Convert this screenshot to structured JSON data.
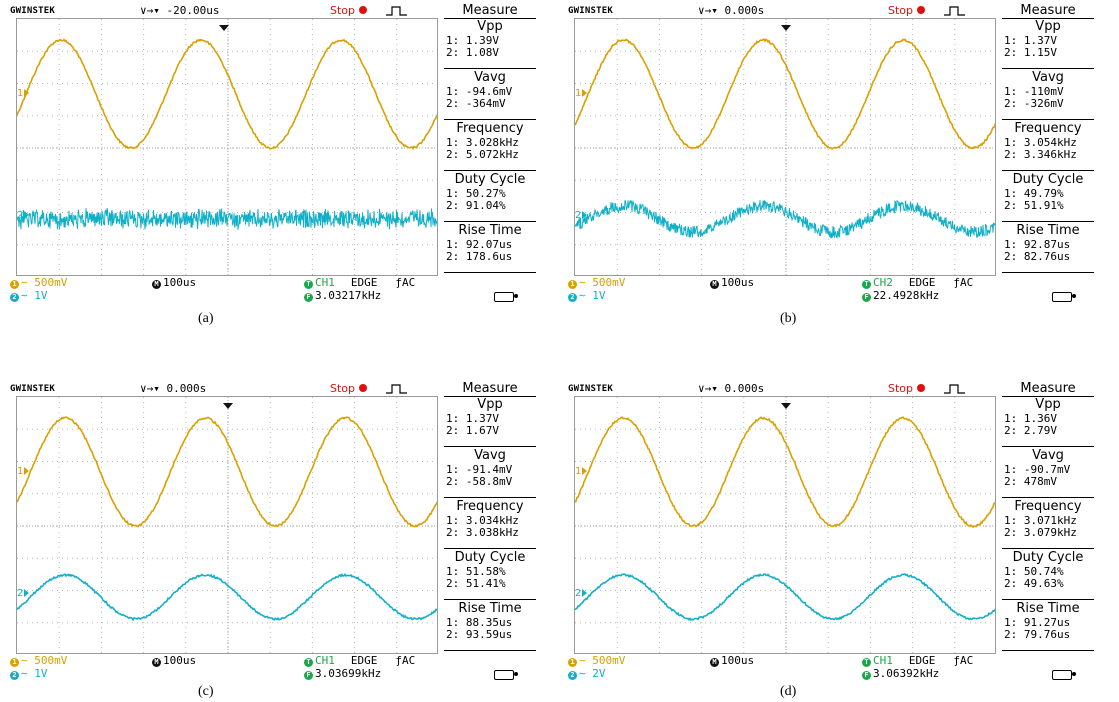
{
  "scopes": [
    {
      "brand": "GWINSTEK",
      "time_pos": "∨→▾ -20.00us",
      "status": "Stop",
      "measure_title": "Measure",
      "measures": [
        {
          "name": "Vpp",
          "v1": "1: 1.39V",
          "v2": "2: 1.08V"
        },
        {
          "name": "Vavg",
          "v1": "1: -94.6mV",
          "v2": "2: -364mV"
        },
        {
          "name": "Frequency",
          "v1": "1: 3.028kHz",
          "v2": "2: 5.072kHz"
        },
        {
          "name": "Duty Cycle",
          "v1": "1: 50.27%",
          "v2": "2: 91.04%"
        },
        {
          "name": "Rise Time",
          "v1": "1: 92.07us",
          "v2": "2: 178.6us"
        }
      ],
      "ch1_scale": "∼ 500mV",
      "ch2_scale": "∼ 1V",
      "timebase": "100us",
      "trig_src": "CH1",
      "trig_type": "EDGE",
      "coupling": "ƒAC",
      "trig_freq": "3.03217kHz",
      "ch1_label": "1",
      "ch2_label": "2",
      "caption": "(a)",
      "ch2_mode": "noise"
    },
    {
      "brand": "GWINSTEK",
      "time_pos": "∨→▾ 0.000s",
      "status": "Stop",
      "measure_title": "Measure",
      "measures": [
        {
          "name": "Vpp",
          "v1": "1: 1.37V",
          "v2": "2: 1.15V"
        },
        {
          "name": "Vavg",
          "v1": "1: -110mV",
          "v2": "2: -326mV"
        },
        {
          "name": "Frequency",
          "v1": "1: 3.054kHz",
          "v2": "2: 3.346kHz"
        },
        {
          "name": "Duty Cycle",
          "v1": "1: 49.79%",
          "v2": "2: 51.91%"
        },
        {
          "name": "Rise Time",
          "v1": "1: 92.87us",
          "v2": "2: 82.76us"
        }
      ],
      "ch1_scale": "∼ 500mV",
      "ch2_scale": "∼ 1V",
      "timebase": "100us",
      "trig_src": "CH2",
      "trig_type": "EDGE",
      "coupling": "ƒAC",
      "trig_freq": "22.4928kHz",
      "ch1_label": "1",
      "ch2_label": "2",
      "caption": "(b)",
      "ch2_mode": "noisy-sine"
    },
    {
      "brand": "GWINSTEK",
      "time_pos": "∨→▾ 0.000s",
      "status": "Stop",
      "measure_title": "Measure",
      "measures": [
        {
          "name": "Vpp",
          "v1": "1: 1.37V",
          "v2": "2: 1.67V"
        },
        {
          "name": "Vavg",
          "v1": "1: -91.4mV",
          "v2": "2: -58.8mV"
        },
        {
          "name": "Frequency",
          "v1": "1: 3.034kHz",
          "v2": "2: 3.038kHz"
        },
        {
          "name": "Duty Cycle",
          "v1": "1: 51.58%",
          "v2": "2: 51.41%"
        },
        {
          "name": "Rise Time",
          "v1": "1: 88.35us",
          "v2": "2: 93.59us"
        }
      ],
      "ch1_scale": "∼ 500mV",
      "ch2_scale": "∼ 1V",
      "timebase": "100us",
      "trig_src": "CH1",
      "trig_type": "EDGE",
      "coupling": "ƒAC",
      "trig_freq": "3.03699kHz",
      "ch1_label": "1",
      "ch2_label": "2",
      "caption": "(c)",
      "ch2_mode": "sine"
    },
    {
      "brand": "GWINSTEK",
      "time_pos": "∨→▾ 0.000s",
      "status": "Stop",
      "measure_title": "Measure",
      "measures": [
        {
          "name": "Vpp",
          "v1": "1: 1.36V",
          "v2": "2: 2.79V"
        },
        {
          "name": "Vavg",
          "v1": "1: -90.7mV",
          "v2": "2: 478mV"
        },
        {
          "name": "Frequency",
          "v1": "1: 3.071kHz",
          "v2": "2: 3.079kHz"
        },
        {
          "name": "Duty Cycle",
          "v1": "1: 50.74%",
          "v2": "2: 49.63%"
        },
        {
          "name": "Rise Time",
          "v1": "1: 91.27us",
          "v2": "2: 79.76us"
        }
      ],
      "ch1_scale": "∼ 500mV",
      "ch2_scale": "∼ 2V",
      "timebase": "100us",
      "trig_src": "CH1",
      "trig_type": "EDGE",
      "coupling": "ƒAC",
      "trig_freq": "3.06392kHz",
      "ch1_label": "1",
      "ch2_label": "2",
      "caption": "(d)",
      "ch2_mode": "sine"
    }
  ],
  "colors": {
    "ch1": "#d8a000",
    "ch2": "#10b0c8",
    "trigger": "#1aa84a",
    "stop": "#e01010"
  }
}
